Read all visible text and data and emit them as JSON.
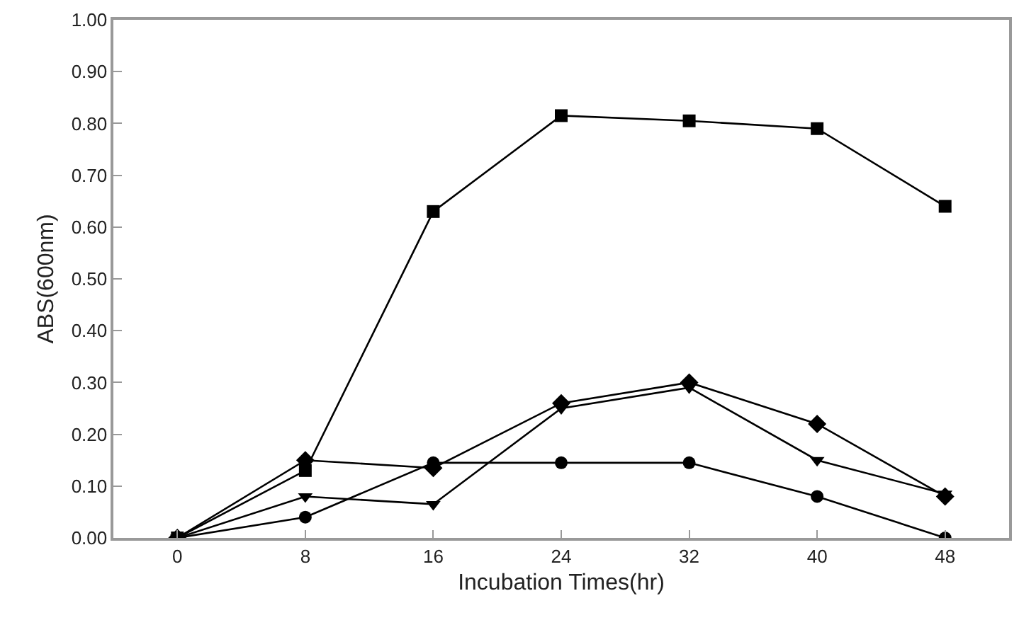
{
  "chart_data": {
    "type": "line",
    "xlabel": "Incubation Times(hr)",
    "ylabel": "ABS(600nm)",
    "x": [
      0,
      8,
      16,
      24,
      32,
      40,
      48
    ],
    "xlim": [
      -4,
      52
    ],
    "xticks": [
      0,
      8,
      16,
      24,
      32,
      40,
      48
    ],
    "ylim": [
      0,
      1
    ],
    "yticks": [
      {
        "value": 0,
        "label": "0.00"
      },
      {
        "value": 0.1,
        "label": "0.10"
      },
      {
        "value": 0.2,
        "label": "0.20"
      },
      {
        "value": 0.3,
        "label": "0.30"
      },
      {
        "value": 0.4,
        "label": "0.40"
      },
      {
        "value": 0.5,
        "label": "0.50"
      },
      {
        "value": 0.6,
        "label": "0.60"
      },
      {
        "value": 0.7,
        "label": "0.70"
      },
      {
        "value": 0.8,
        "label": "0.80"
      },
      {
        "value": 0.9,
        "label": "0.90"
      },
      {
        "value": 1,
        "label": "1.00"
      }
    ],
    "grid": false,
    "line_style": "solid",
    "series": [
      {
        "color": "#000000",
        "marker": "square",
        "values": [
          0,
          0.13,
          0.63,
          0.815,
          0.805,
          0.79,
          0.64
        ]
      },
      {
        "color": "#000000",
        "marker": "diamond",
        "values": [
          0,
          0.15,
          0.135,
          0.26,
          0.3,
          0.22,
          0.08
        ]
      },
      {
        "color": "#000000",
        "marker": "triangle",
        "values": [
          0,
          0.08,
          0.065,
          0.25,
          0.29,
          0.15,
          0.085
        ]
      },
      {
        "color": "#000000",
        "marker": "circle",
        "values": [
          0,
          0.04,
          0.145,
          0.145,
          0.145,
          0.08,
          0
        ]
      }
    ]
  }
}
